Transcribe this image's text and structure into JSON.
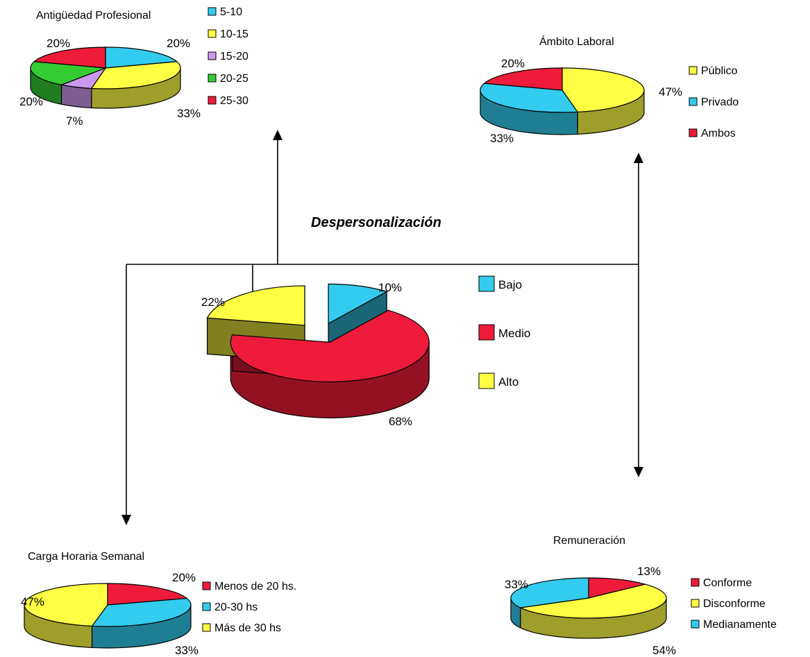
{
  "center_title": "Despersonalización",
  "chart_data": [
    {
      "id": "main",
      "type": "pie",
      "title": "",
      "categories": [
        "Bajo",
        "Medio",
        "Alto"
      ],
      "values": [
        10,
        68,
        22
      ],
      "labels": [
        "10%",
        "68%",
        "22%"
      ],
      "colors": [
        "#33ccee",
        "#ee1c3a",
        "#ffff44"
      ],
      "exploded": true,
      "legend_position": "right"
    },
    {
      "id": "antiguedad",
      "type": "pie",
      "title": "Antigüedad Profesional",
      "categories": [
        "5-10",
        "10-15",
        "15-20",
        "20-25",
        "25-30"
      ],
      "values": [
        20,
        33,
        7,
        20,
        20
      ],
      "labels": [
        "20%",
        "33%",
        "7%",
        "20%",
        "20%"
      ],
      "colors": [
        "#33ccee",
        "#ffff44",
        "#cc99ee",
        "#33cc33",
        "#ee1c3a"
      ],
      "legend_position": "right"
    },
    {
      "id": "ambito",
      "type": "pie",
      "title": "Ámbito Laboral",
      "categories": [
        "Público",
        "Privado",
        "Ambos"
      ],
      "values": [
        47,
        33,
        20
      ],
      "labels": [
        "47%",
        "33%",
        "20%"
      ],
      "colors": [
        "#ffff44",
        "#33ccee",
        "#ee1c3a"
      ],
      "legend_position": "right"
    },
    {
      "id": "carga",
      "type": "pie",
      "title": "Carga Horaria Semanal",
      "categories": [
        "Menos de 20 hs.",
        "20-30 hs",
        "Más de 30 hs"
      ],
      "values": [
        20,
        33,
        47
      ],
      "labels": [
        "20%",
        "33%",
        "47%"
      ],
      "colors": [
        "#ee1c3a",
        "#33ccee",
        "#ffff44"
      ],
      "legend_position": "right"
    },
    {
      "id": "remuneracion",
      "type": "pie",
      "title": "Remuneración",
      "categories": [
        "Conforme",
        "Disconforme",
        "Medianamente"
      ],
      "values": [
        13,
        54,
        33
      ],
      "labels": [
        "13%",
        "54%",
        "33%"
      ],
      "colors": [
        "#ee1c3a",
        "#ffff44",
        "#33ccee"
      ],
      "legend_position": "right"
    }
  ]
}
